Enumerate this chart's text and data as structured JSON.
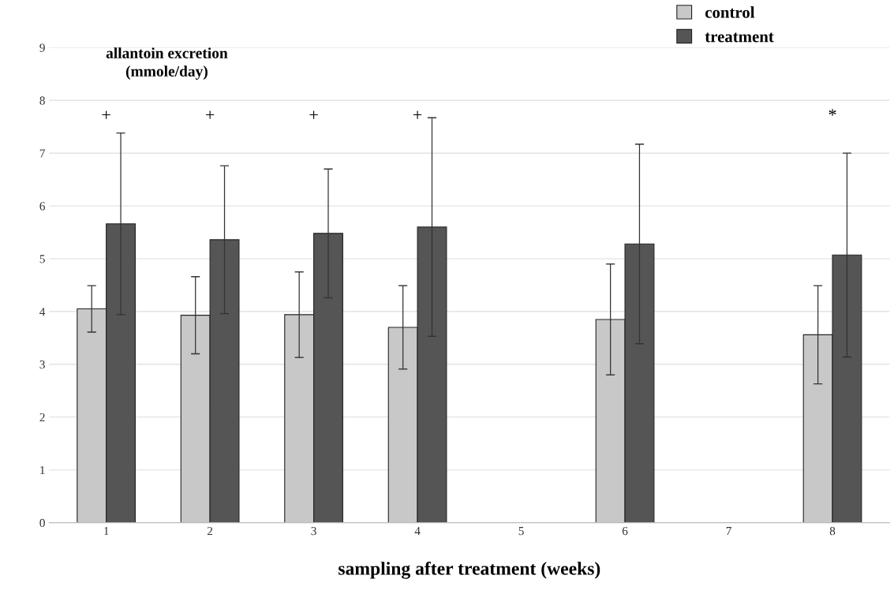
{
  "chart_data": {
    "type": "bar",
    "ylabel": "allantoin excretion\n(mmole/day)",
    "xlabel": "sampling after treatment (weeks)",
    "categories": [
      "1",
      "2",
      "3",
      "4",
      "5",
      "6",
      "7",
      "8"
    ],
    "series": [
      {
        "name": "control",
        "color": "#c8c8c8",
        "values": [
          4.05,
          3.93,
          3.94,
          3.7,
          null,
          3.85,
          null,
          3.56
        ],
        "errors": [
          0.44,
          0.73,
          0.81,
          0.79,
          null,
          1.05,
          null,
          0.93
        ]
      },
      {
        "name": "treatment",
        "color": "#555555",
        "values": [
          5.66,
          5.36,
          5.48,
          5.6,
          null,
          5.28,
          null,
          5.07
        ],
        "errors": [
          1.72,
          1.4,
          1.22,
          2.07,
          null,
          1.89,
          null,
          1.93
        ]
      }
    ],
    "annotations": [
      "+",
      "+",
      "+",
      "+",
      "*"
    ],
    "ylim": [
      0,
      9
    ],
    "yticks": [
      0,
      1,
      2,
      3,
      4,
      5,
      6,
      7,
      8,
      9
    ],
    "grid": "y",
    "legend": "top right"
  }
}
